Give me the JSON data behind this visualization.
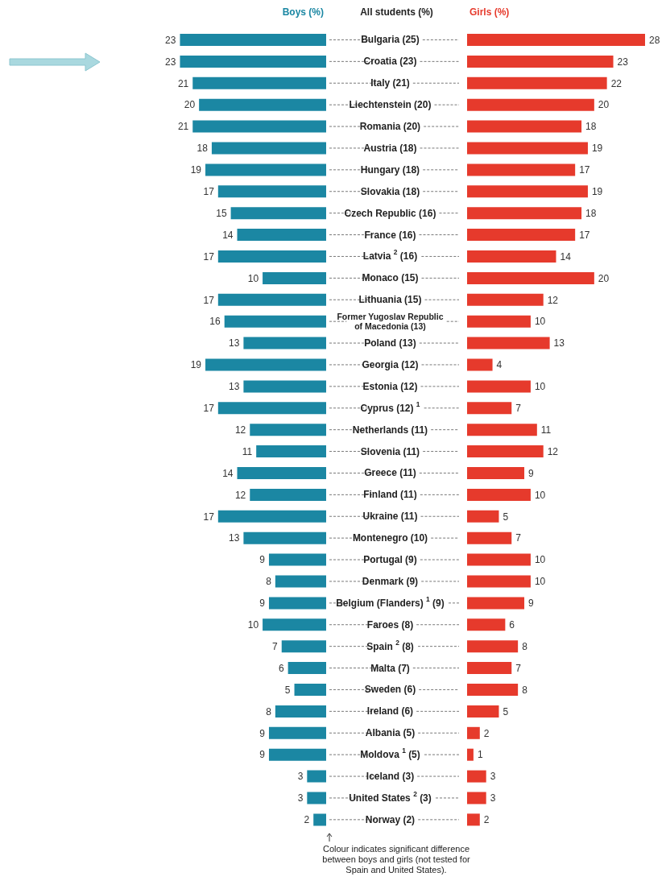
{
  "chart_data": [
    {
      "type": "bar",
      "orientation": "horizontal",
      "legend": "top",
      "data_labels": true,
      "tick_labels": false,
      "categories": [
        "Bulgaria (25)",
        "Croatia (23)",
        "Italy (21)",
        "Liechtenstein (20)",
        "Romania (20)",
        "Austria (18)",
        "Hungary (18)",
        "Slovakia (18)",
        "Czech Republic (16)",
        "France (16)",
        "Latvia $^{2}$ (16)",
        "Monaco (15)",
        "Lithuania (15)",
        "Former Yugoslav Republic of Macedonia (13)",
        "Poland (13)",
        "Georgia (12)",
        "Estonia (12)",
        "Cyprus (12) $^{1}$",
        "Netherlands (11)",
        "Slovenia (11)",
        "Greece (11)",
        "Finland (11)",
        "Ukraine (11)",
        "Montenegro (10)",
        "Portugal (9)",
        "Denmark (9)",
        "Belgium (Flanders) $^{1}$ (9)",
        "Faroes (8)",
        "Spain $^{2}$ (8)",
        "Malta (7)",
        "Sweden (6)",
        "Ireland (6)",
        "Albania (5)",
        "Moldova $^{1}$ (5)",
        "Iceland (3)",
        "United States $^{2}$ (3)",
        "Norway (2)"
      ],
      "series": [
        {
          "name": "Boys (%)",
          "color": "#1b87a3",
          "values": [
            23,
            23,
            21,
            20,
            21,
            18,
            19,
            17,
            15,
            14,
            17,
            10,
            17,
            16,
            13,
            19,
            13,
            17,
            12,
            11,
            14,
            12,
            17,
            13,
            9,
            8,
            9,
            10,
            7,
            6,
            5,
            8,
            9,
            9,
            3,
            3,
            2
          ]
        }
      ]
    },
    {
      "type": "bar",
      "orientation": "horizontal",
      "legend": "top",
      "data_labels": true,
      "ylabel": "All students (%)",
      "categories": [
        "Bulgaria (25)",
        "Croatia (23)",
        "Italy (21)",
        "Liechtenstein (20)",
        "Romania (20)",
        "Austria (18)",
        "Hungary (18)",
        "Slovakia (18)",
        "Czech Republic (16)",
        "France (16)",
        "Latvia $^{2}$ (16)",
        "Monaco (15)",
        "Lithuania (15)",
        "Former Yugoslav Republic of Macedonia (13)",
        "Poland (13)",
        "Georgia (12)",
        "Estonia (12)",
        "Cyprus (12) $^{1}$",
        "Netherlands (11)",
        "Slovenia (11)",
        "Greece (11)",
        "Finland (11)",
        "Ukraine (11)",
        "Montenegro (10)",
        "Portugal (9)",
        "Denmark (9)",
        "Belgium (Flanders) $^{1}$ (9)",
        "Faroes (8)",
        "Spain $^{2}$ (8)",
        "Malta (7)",
        "Sweden (6)",
        "Ireland (6)",
        "Albania (5)",
        "Moldova $^{1}$ (5)",
        "Iceland (3)",
        "United States $^{2}$ (3)",
        "Norway (2)"
      ],
      "series": [
        {
          "name": "Girls (%)",
          "color": "#e63a2c",
          "values": [
            28,
            23,
            22,
            20,
            18,
            19,
            17,
            19,
            18,
            17,
            14,
            20,
            12,
            10,
            13,
            4,
            10,
            7,
            11,
            12,
            9,
            10,
            5,
            7,
            10,
            10,
            9,
            6,
            8,
            7,
            8,
            5,
            2,
            1,
            3,
            3,
            2
          ]
        }
      ],
      "annotations": [
        "Colour indicates significant difference between boys and girls (not tested for Spain and United States)."
      ]
    }
  ]
}
